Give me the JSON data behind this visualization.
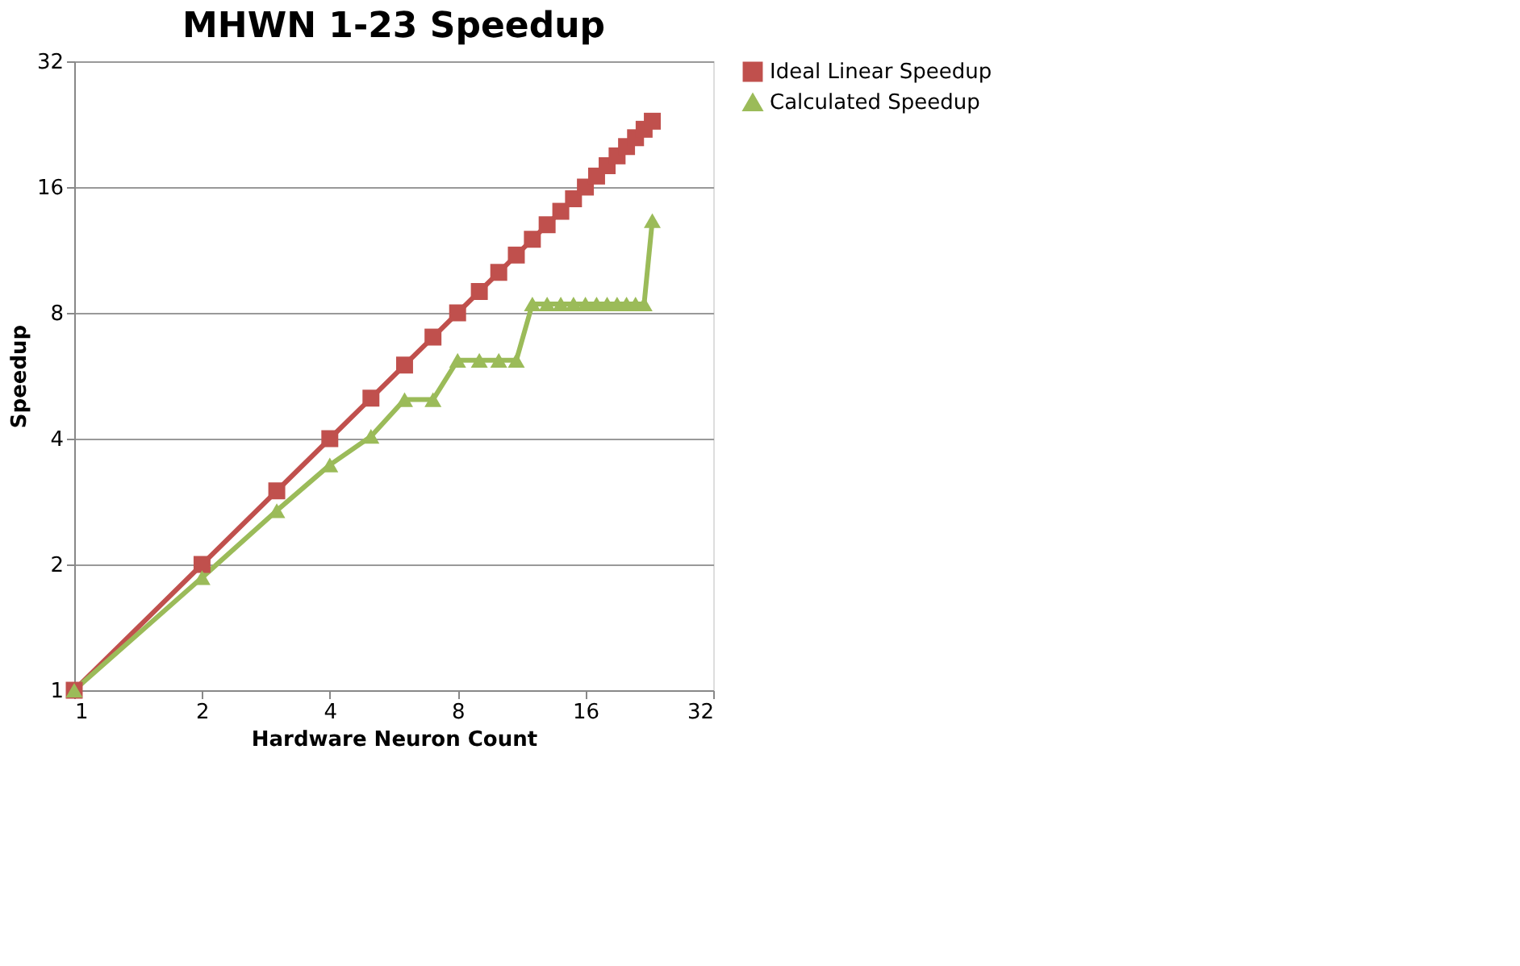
{
  "chart_data": {
    "type": "line",
    "title": "MHWN 1-23 Speedup",
    "xlabel": "Hardware Neuron Count",
    "ylabel": "Speedup",
    "x": [
      1,
      2,
      3,
      4,
      5,
      6,
      7,
      8,
      9,
      10,
      11,
      12,
      13,
      14,
      15,
      16,
      17,
      18,
      19,
      20,
      21,
      22,
      23
    ],
    "series": [
      {
        "name": "Ideal Linear Speedup",
        "color": "#c0504d",
        "marker": "square",
        "values": [
          1,
          2,
          3,
          4,
          5,
          6,
          7,
          8,
          9,
          10,
          11,
          12,
          13,
          14,
          15,
          16,
          17,
          18,
          19,
          20,
          21,
          22,
          23
        ]
      },
      {
        "name": "Calculated Speedup",
        "color": "#9bbb59",
        "marker": "triangle",
        "values": [
          1,
          1.86,
          2.69,
          3.46,
          4.05,
          4.96,
          4.96,
          6.16,
          6.16,
          6.16,
          6.16,
          8.4,
          8.4,
          8.4,
          8.4,
          8.4,
          8.4,
          8.4,
          8.4,
          8.4,
          8.4,
          8.4,
          13.3
        ]
      }
    ],
    "log": "xy",
    "xlim": [
      1,
      32
    ],
    "ylim": [
      1,
      32
    ],
    "xticks": [
      1,
      2,
      4,
      8,
      16,
      32
    ],
    "yticks": [
      1,
      2,
      4,
      8,
      16,
      32
    ],
    "grid": "y",
    "legend": "right",
    "line_style": "solid"
  }
}
